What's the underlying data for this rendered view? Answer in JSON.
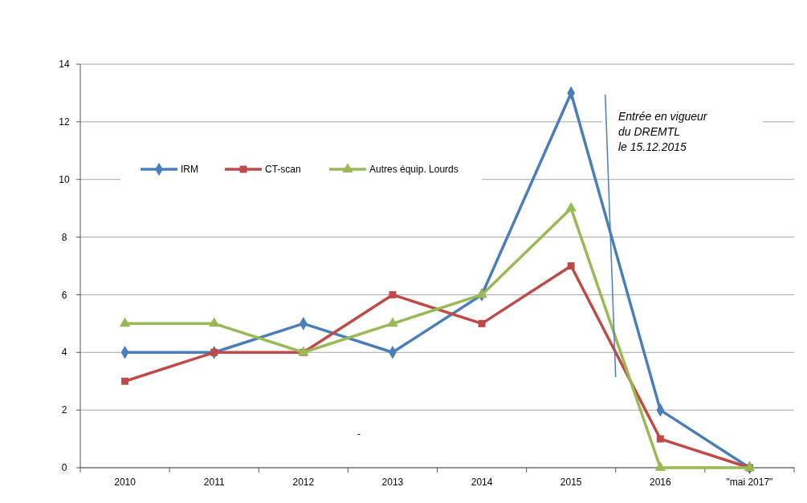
{
  "chart_data": {
    "type": "line",
    "categories": [
      "2010",
      "2011",
      "2012",
      "2013",
      "2014",
      "2015",
      "2016",
      "\"mai 2017\""
    ],
    "series": [
      {
        "name": "IRM",
        "color": "#4a7ebb",
        "marker": "diamond",
        "values": [
          4,
          4,
          5,
          4,
          6,
          13,
          2,
          0
        ]
      },
      {
        "name": "CT-scan",
        "color": "#be4b48",
        "marker": "square",
        "values": [
          3,
          4,
          4,
          6,
          5,
          7,
          1,
          0
        ]
      },
      {
        "name": "Autres équip. Lourds",
        "color": "#98b954",
        "marker": "triangle",
        "values": [
          5,
          5,
          4,
          5,
          6,
          9,
          0,
          0
        ]
      }
    ],
    "ylim": [
      0,
      14
    ],
    "yticks": [
      0,
      2,
      4,
      6,
      8,
      10,
      12,
      14
    ],
    "grid": "y",
    "legend": "top left",
    "annotations": [
      "Entrée en vigueur\ndu DREMTL\nle 15.12.2015",
      "-"
    ]
  }
}
